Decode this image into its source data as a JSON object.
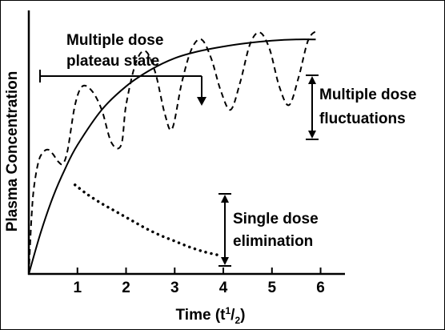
{
  "chart_data": {
    "type": "line",
    "title": "",
    "xlabel_main": "Time (t",
    "xlabel_sup": "1",
    "xlabel_tail": "/",
    "xlabel_sub": "2",
    "xlabel_close": ")",
    "ylabel": "Plasma Concentration",
    "x_ticks": [
      "1",
      "2",
      "3",
      "4",
      "5",
      "6"
    ],
    "xlim": [
      0,
      6.6
    ],
    "ylim": [
      0,
      1.1
    ],
    "grid": false,
    "legend": "none",
    "series": [
      {
        "style": "solid",
        "x": [
          0,
          0.25,
          0.5,
          0.75,
          1,
          1.5,
          2,
          2.5,
          3,
          3.5,
          4,
          4.5,
          5,
          5.5,
          5.9
        ],
        "y": [
          0,
          0.18,
          0.33,
          0.45,
          0.55,
          0.7,
          0.8,
          0.87,
          0.92,
          0.95,
          0.97,
          0.985,
          0.995,
          1.0,
          1.0
        ]
      },
      {
        "style": "dashed",
        "x": [
          0,
          0.05,
          0.1,
          0.2,
          0.3,
          0.4,
          0.5,
          0.6,
          0.7,
          0.8,
          0.95,
          1.1,
          1.3,
          1.5,
          1.7,
          1.9,
          2.0,
          2.2,
          2.4,
          2.6,
          2.8,
          2.95,
          3.15,
          3.35,
          3.55,
          3.75,
          3.95,
          4.15,
          4.35,
          4.55,
          4.75,
          4.95,
          5.15,
          5.35,
          5.55,
          5.75,
          5.95
        ],
        "y": [
          0,
          0.22,
          0.36,
          0.48,
          0.52,
          0.53,
          0.51,
          0.48,
          0.47,
          0.53,
          0.72,
          0.8,
          0.78,
          0.7,
          0.56,
          0.55,
          0.72,
          0.9,
          0.95,
          0.86,
          0.68,
          0.62,
          0.82,
          0.96,
          1.0,
          0.92,
          0.78,
          0.7,
          0.82,
          0.98,
          1.03,
          0.96,
          0.8,
          0.72,
          0.84,
          1.0,
          1.04
        ]
      },
      {
        "style": "dotted",
        "x": [
          0.95,
          1.2,
          1.5,
          1.8,
          2.1,
          2.4,
          2.7,
          3.0,
          3.3,
          3.6,
          3.9
        ],
        "y": [
          0.38,
          0.34,
          0.3,
          0.265,
          0.23,
          0.195,
          0.165,
          0.14,
          0.115,
          0.095,
          0.08
        ]
      }
    ],
    "annotations": {
      "plateau": [
        "Multiple dose",
        "plateau state"
      ],
      "fluctuations": [
        "Multiple dose",
        "fluctuations"
      ],
      "single": [
        "Single dose",
        "elimination"
      ]
    }
  }
}
